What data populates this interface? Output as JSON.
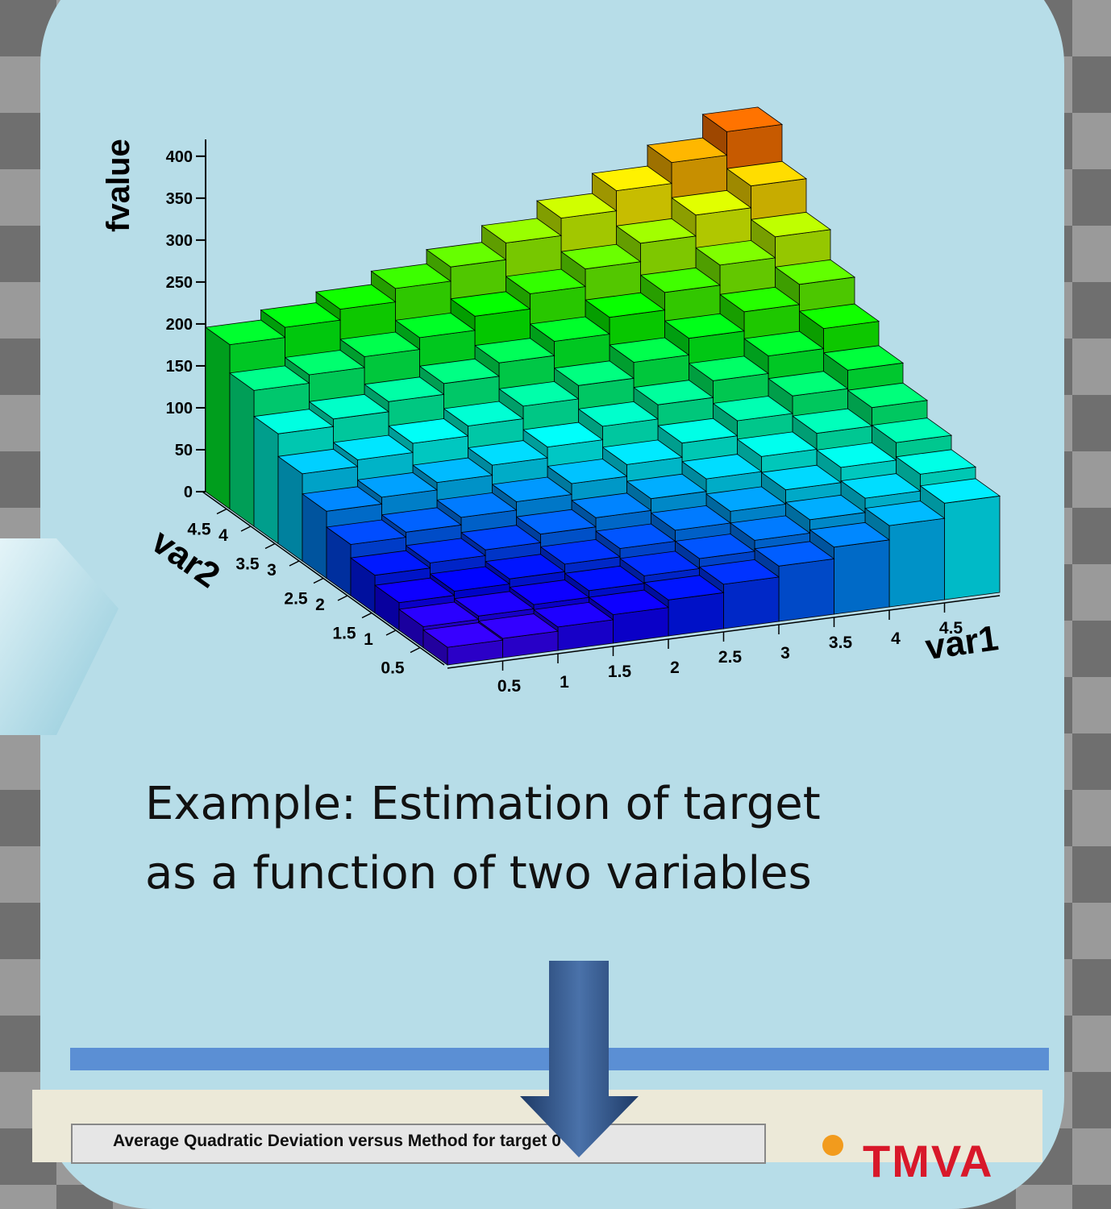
{
  "chart_data": {
    "type": "lego",
    "zlabel": "fvalue",
    "xlabel": "var1",
    "ylabel": "var2",
    "xbins": [
      0,
      0.5,
      1,
      1.5,
      2,
      2.5,
      3,
      3.5,
      4,
      4.5,
      5
    ],
    "ybins": [
      0,
      0.5,
      1,
      1.5,
      2,
      2.5,
      3,
      3.5,
      4,
      4.5,
      5
    ],
    "z": [
      [
        21,
        23,
        28,
        34,
        43,
        53,
        66,
        80,
        97,
        115
      ],
      [
        25,
        29,
        34,
        42,
        51,
        63,
        76,
        92,
        109,
        129
      ],
      [
        33,
        38,
        44,
        53,
        63,
        76,
        90,
        107,
        125,
        146
      ],
      [
        45,
        51,
        58,
        68,
        79,
        93,
        108,
        126,
        145,
        167
      ],
      [
        61,
        67,
        76,
        86,
        99,
        113,
        130,
        148,
        169,
        191
      ],
      [
        80,
        88,
        97,
        109,
        122,
        138,
        155,
        175,
        196,
        220
      ],
      [
        104,
        112,
        123,
        135,
        150,
        166,
        185,
        205,
        228,
        252
      ],
      [
        131,
        140,
        152,
        165,
        181,
        198,
        218,
        239,
        263,
        288
      ],
      [
        162,
        172,
        185,
        199,
        216,
        234,
        255,
        277,
        302,
        328
      ],
      [
        196,
        208,
        221,
        237,
        254,
        274,
        295,
        319,
        344,
        372
      ]
    ],
    "xlim": [
      0,
      5
    ],
    "ylim": [
      0,
      5
    ],
    "zlim": [
      0,
      420
    ],
    "xticks": [
      0.5,
      1,
      1.5,
      2,
      2.5,
      3,
      3.5,
      4,
      4.5
    ],
    "yticks": [
      0.5,
      1,
      1.5,
      2,
      2.5,
      3,
      3.5,
      4,
      4.5
    ],
    "zticks": [
      0,
      50,
      100,
      150,
      200,
      250,
      300,
      350,
      400
    ],
    "colormap": "rainbow"
  },
  "slide": {
    "caption": [
      "Example:  Estimation of target",
      "as a function of two variables"
    ],
    "bottom_panel_title": "Average Quadratic Deviation versus Method for target 0",
    "logo": "TMVA"
  }
}
